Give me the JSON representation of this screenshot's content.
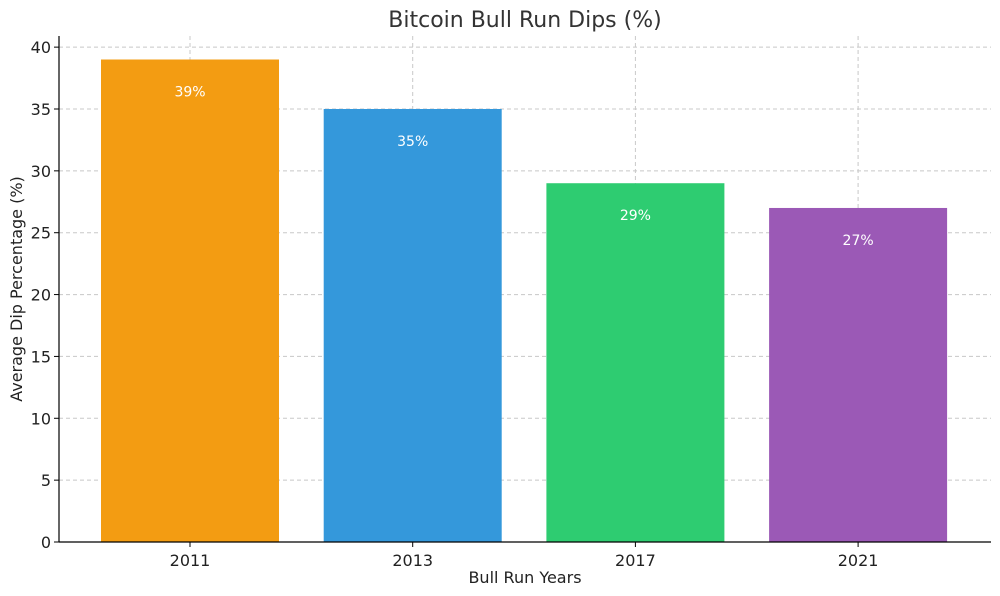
{
  "chart_data": {
    "type": "bar",
    "title": "Bitcoin Bull Run Dips (%)",
    "xlabel": "Bull Run Years",
    "ylabel": "Average Dip Percentage (%)",
    "categories": [
      "2011",
      "2013",
      "2017",
      "2021"
    ],
    "values": [
      39,
      35,
      29,
      27
    ],
    "data_labels": [
      "39%",
      "35%",
      "29%",
      "27%"
    ],
    "colors": [
      "#f39c12",
      "#3498db",
      "#2ecc71",
      "#9b59b6"
    ],
    "ylim": [
      0,
      40.9
    ],
    "yticks": [
      0,
      5,
      10,
      15,
      20,
      25,
      30,
      35,
      40
    ],
    "grid": true
  }
}
